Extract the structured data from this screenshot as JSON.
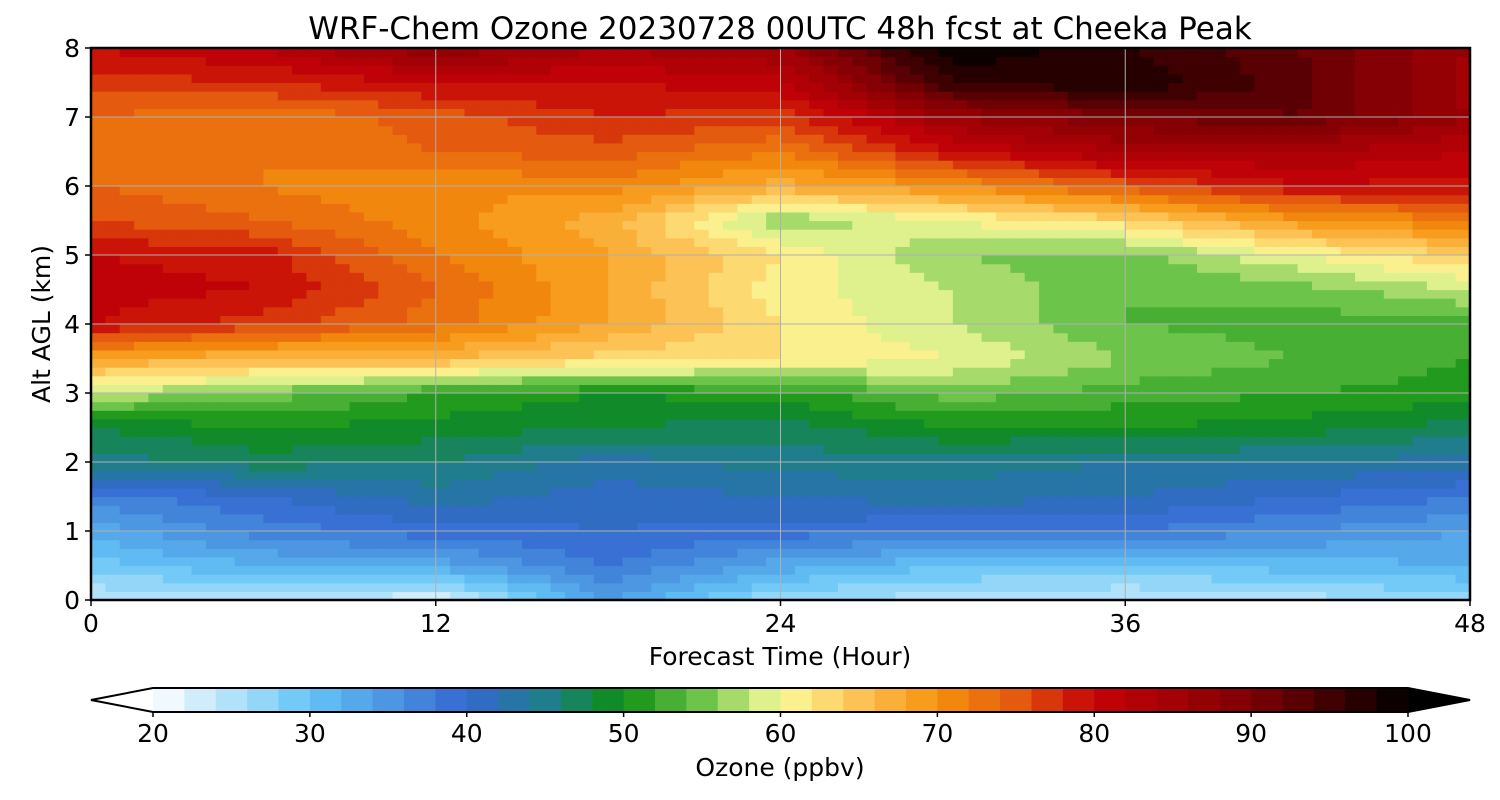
{
  "chart_data": {
    "type": "heatmap",
    "title": "WRF-Chem Ozone  20230728 00UTC 48h fcst at Cheeka Peak",
    "xlabel": "Forecast Time (Hour)",
    "ylabel": "Alt AGL (km)",
    "xlim": [
      0,
      48
    ],
    "ylim": [
      0,
      8
    ],
    "x_ticks": [
      0,
      12,
      24,
      36,
      48
    ],
    "y_ticks": [
      0,
      1,
      2,
      3,
      4,
      5,
      6,
      7,
      8
    ],
    "grid": true,
    "x_hours": [
      0,
      6,
      12,
      18,
      24,
      30,
      36,
      42,
      48
    ],
    "y_km": [
      0,
      0.5,
      1,
      1.5,
      2,
      2.5,
      3,
      3.5,
      4,
      4.5,
      5,
      5.5,
      6,
      6.5,
      7,
      7.5,
      8
    ],
    "z_ozone_ppbv": [
      [
        24,
        25,
        22,
        34,
        26,
        25,
        24,
        25,
        27
      ],
      [
        29,
        32,
        33,
        38,
        33,
        30,
        29,
        31,
        32
      ],
      [
        33,
        37,
        39,
        40,
        39,
        38,
        38,
        36,
        34
      ],
      [
        37,
        40,
        43,
        41,
        42,
        43,
        42,
        40,
        38
      ],
      [
        45,
        47,
        46,
        43,
        45,
        45,
        44,
        44,
        43
      ],
      [
        48,
        50,
        49,
        48,
        47,
        50,
        50,
        49,
        47
      ],
      [
        58,
        55,
        52,
        50,
        51,
        55,
        53,
        52,
        51
      ],
      [
        68,
        66,
        66,
        63,
        62,
        60,
        56,
        54,
        52
      ],
      [
        80,
        77,
        73,
        68,
        62,
        58,
        54,
        53,
        53
      ],
      [
        81,
        80,
        74,
        68,
        61,
        58,
        54,
        55,
        58
      ],
      [
        80,
        79,
        72,
        68,
        62,
        56,
        55,
        60,
        64
      ],
      [
        76,
        74,
        71,
        67,
        56,
        60,
        63,
        69,
        72
      ],
      [
        74,
        72,
        70,
        71,
        67,
        70,
        75,
        80,
        79
      ],
      [
        73,
        72,
        74,
        75,
        72,
        80,
        84,
        84,
        82
      ],
      [
        74,
        72,
        75,
        78,
        77,
        86,
        90,
        92,
        86
      ],
      [
        77,
        78,
        80,
        80,
        81,
        96,
        98,
        93,
        85
      ],
      [
        80,
        82,
        88,
        84,
        86,
        100,
        96,
        92,
        86
      ]
    ],
    "colorbar": {
      "label": "Ozone  (ppbv)",
      "min": 20,
      "max": 100,
      "ticks": [
        20,
        30,
        40,
        50,
        60,
        70,
        80,
        90,
        100
      ],
      "extend": "both",
      "colormap_stops": [
        {
          "v": 20,
          "c": "#ffffff"
        },
        {
          "v": 30,
          "c": "#64c4f5"
        },
        {
          "v": 40,
          "c": "#3368cf"
        },
        {
          "v": 45,
          "c": "#1f7d8c"
        },
        {
          "v": 50,
          "c": "#0e8f12"
        },
        {
          "v": 55,
          "c": "#6dc44a"
        },
        {
          "v": 60,
          "c": "#fbfc9c"
        },
        {
          "v": 65,
          "c": "#fcc255"
        },
        {
          "v": 70,
          "c": "#f6920e"
        },
        {
          "v": 75,
          "c": "#e45a0e"
        },
        {
          "v": 80,
          "c": "#c50207"
        },
        {
          "v": 90,
          "c": "#7e0004"
        },
        {
          "v": 100,
          "c": "#000000"
        }
      ]
    }
  }
}
